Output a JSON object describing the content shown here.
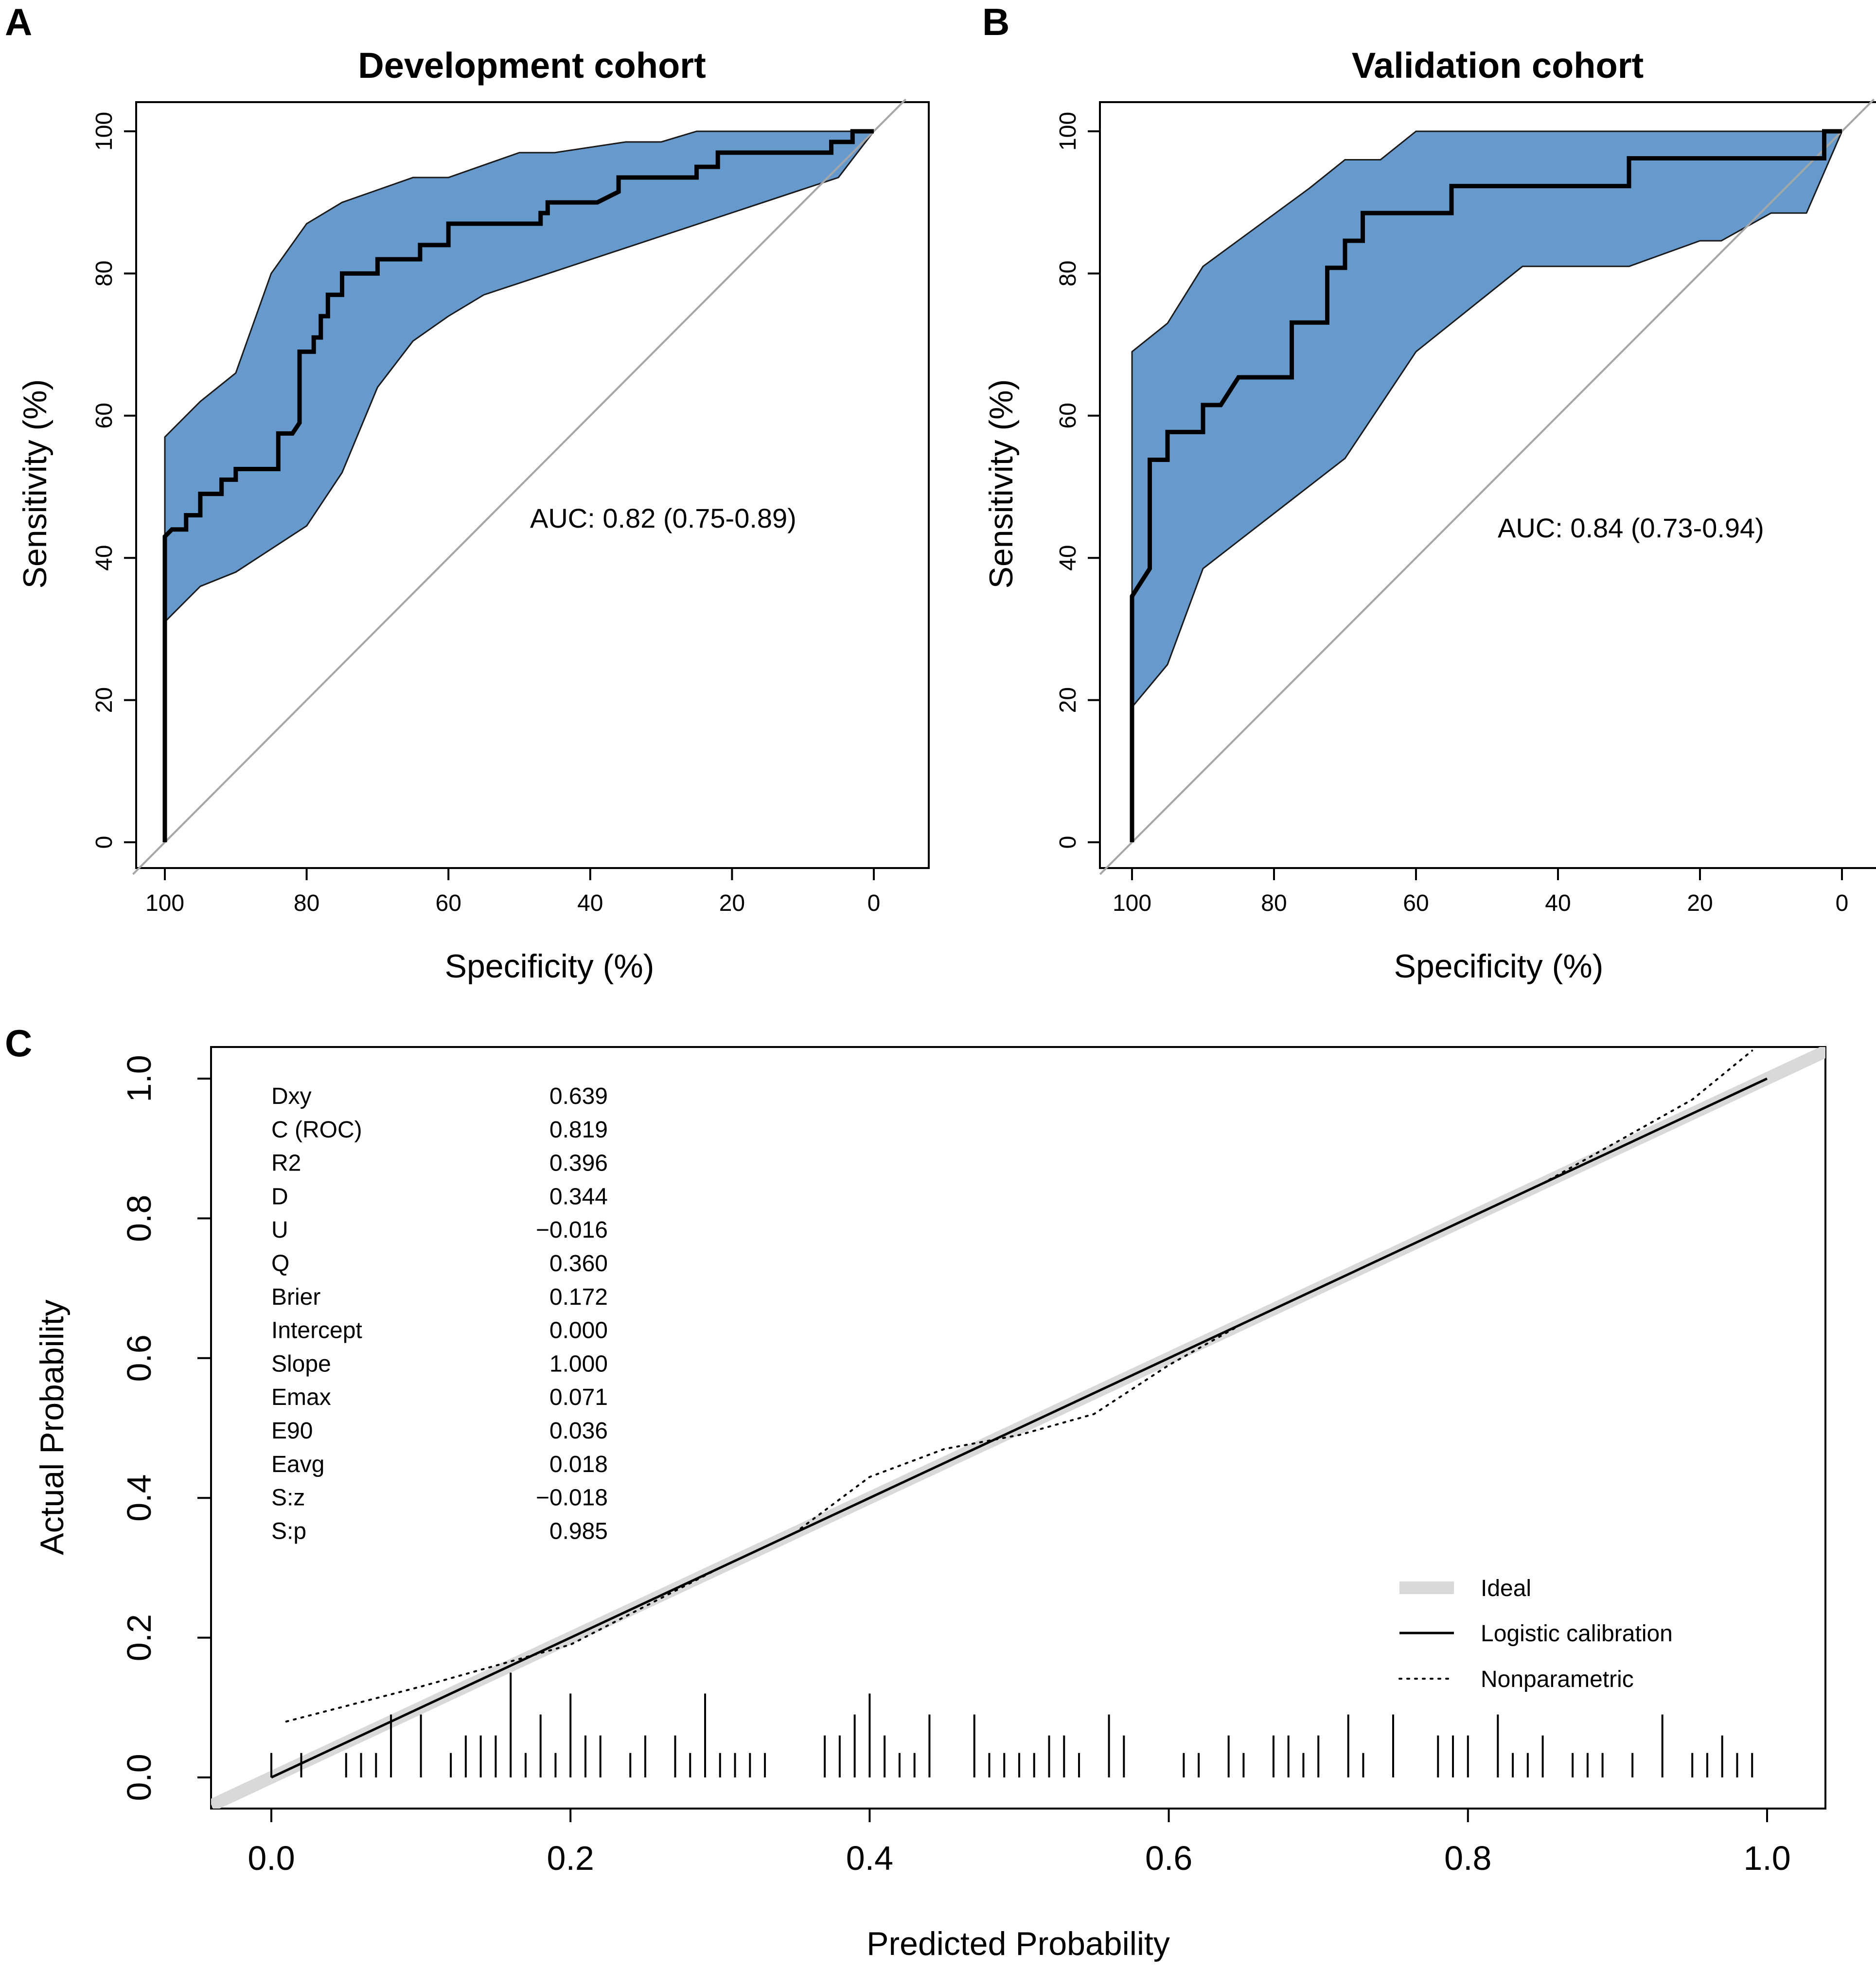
{
  "panels": {
    "a": {
      "letter": "A"
    },
    "b": {
      "letter": "B"
    },
    "c": {
      "letter": "C"
    }
  },
  "colors": {
    "band_fill": "#6699cc",
    "band_stroke": "#1a1a1a",
    "curve": "#000000",
    "diagonal": "#a6a6a6",
    "ideal": "#d9d9d9"
  },
  "chart_data": [
    {
      "type": "line",
      "title": "Development cohort",
      "xlabel": "Specificity (%)",
      "ylabel": "Sensitivity (%)",
      "xlim": [
        100,
        0
      ],
      "ylim": [
        0,
        100
      ],
      "xticks": [
        "100",
        "80",
        "60",
        "40",
        "20",
        "0"
      ],
      "yticks": [
        "0",
        "20",
        "40",
        "60",
        "80",
        "100"
      ],
      "auc_label": "AUC: 0.82 (0.75-0.89)",
      "roc_curve": [
        [
          100,
          0
        ],
        [
          100,
          43
        ],
        [
          99,
          44
        ],
        [
          97,
          44
        ],
        [
          97,
          46
        ],
        [
          95,
          46
        ],
        [
          95,
          49
        ],
        [
          92,
          49
        ],
        [
          92,
          51
        ],
        [
          90,
          51
        ],
        [
          90,
          52.5
        ],
        [
          84,
          52.5
        ],
        [
          84,
          57.5
        ],
        [
          82,
          57.5
        ],
        [
          81,
          59
        ],
        [
          81,
          69
        ],
        [
          79,
          69
        ],
        [
          79,
          71
        ],
        [
          78,
          71
        ],
        [
          78,
          74
        ],
        [
          77,
          74
        ],
        [
          77,
          77
        ],
        [
          75,
          77
        ],
        [
          75,
          80
        ],
        [
          72,
          80
        ],
        [
          70,
          80
        ],
        [
          70,
          82
        ],
        [
          64,
          82
        ],
        [
          64,
          84
        ],
        [
          60,
          84
        ],
        [
          60,
          87
        ],
        [
          47,
          87
        ],
        [
          47,
          88.5
        ],
        [
          46,
          88.5
        ],
        [
          46,
          90
        ],
        [
          39,
          90
        ],
        [
          36,
          91.5
        ],
        [
          36,
          93.5
        ],
        [
          25,
          93.5
        ],
        [
          25,
          95
        ],
        [
          22,
          95
        ],
        [
          22,
          97
        ],
        [
          6,
          97
        ],
        [
          6,
          98.5
        ],
        [
          3,
          98.5
        ],
        [
          3,
          100
        ],
        [
          0,
          100
        ]
      ],
      "ci_upper": [
        [
          100,
          57
        ],
        [
          95,
          62
        ],
        [
          90,
          66
        ],
        [
          85,
          80
        ],
        [
          80,
          87
        ],
        [
          75,
          90
        ],
        [
          65,
          93.5
        ],
        [
          60,
          93.5
        ],
        [
          50,
          97
        ],
        [
          45,
          97
        ],
        [
          35,
          98.5
        ],
        [
          30,
          98.5
        ],
        [
          25,
          100
        ],
        [
          0,
          100
        ]
      ],
      "ci_lower": [
        [
          100,
          31
        ],
        [
          95,
          36
        ],
        [
          90,
          38
        ],
        [
          80,
          44.5
        ],
        [
          75,
          52
        ],
        [
          70,
          64
        ],
        [
          65,
          70.5
        ],
        [
          60,
          74
        ],
        [
          55,
          77
        ],
        [
          5,
          93.5
        ],
        [
          0,
          100
        ]
      ]
    },
    {
      "type": "line",
      "title": "Validation cohort",
      "xlabel": "Specificity (%)",
      "ylabel": "Sensitivity (%)",
      "xlim": [
        100,
        0
      ],
      "ylim": [
        0,
        100
      ],
      "xticks": [
        "100",
        "80",
        "60",
        "40",
        "20",
        "0"
      ],
      "yticks": [
        "0",
        "20",
        "40",
        "60",
        "80",
        "100"
      ],
      "auc_label": "AUC: 0.84 (0.73-0.94)",
      "roc_curve": [
        [
          100,
          0
        ],
        [
          100,
          34.6
        ],
        [
          97.5,
          38.5
        ],
        [
          97.5,
          53.8
        ],
        [
          95,
          53.8
        ],
        [
          95,
          57.7
        ],
        [
          90,
          57.7
        ],
        [
          90,
          61.5
        ],
        [
          87.5,
          61.5
        ],
        [
          85,
          65.4
        ],
        [
          77.5,
          65.4
        ],
        [
          77.5,
          73.1
        ],
        [
          72.5,
          73.1
        ],
        [
          72.5,
          80.8
        ],
        [
          70,
          80.8
        ],
        [
          70,
          84.6
        ],
        [
          67.5,
          84.6
        ],
        [
          67.5,
          88.5
        ],
        [
          55,
          88.5
        ],
        [
          55,
          92.3
        ],
        [
          30,
          92.3
        ],
        [
          30,
          96.2
        ],
        [
          2.5,
          96.2
        ],
        [
          2.5,
          100
        ],
        [
          0,
          100
        ]
      ],
      "ci_upper": [
        [
          100,
          69
        ],
        [
          95,
          73
        ],
        [
          90,
          81
        ],
        [
          75,
          92
        ],
        [
          70,
          96
        ],
        [
          65,
          96
        ],
        [
          60,
          100
        ],
        [
          0,
          100
        ]
      ],
      "ci_lower": [
        [
          100,
          19
        ],
        [
          95,
          25
        ],
        [
          90,
          38.5
        ],
        [
          70,
          54
        ],
        [
          60,
          69
        ],
        [
          45,
          81
        ],
        [
          30,
          81
        ],
        [
          20,
          84.6
        ],
        [
          17,
          84.6
        ],
        [
          10,
          88.5
        ],
        [
          5,
          88.5
        ],
        [
          0,
          100
        ]
      ]
    },
    {
      "type": "line",
      "title": "",
      "xlabel": "Predicted Probability",
      "ylabel": "Actual Probability",
      "xlim": [
        -0.04,
        1.04
      ],
      "ylim": [
        -0.04,
        1.04
      ],
      "xticks": [
        "0.0",
        "0.2",
        "0.4",
        "0.6",
        "0.8",
        "1.0"
      ],
      "yticks": [
        "0.0",
        "0.2",
        "0.4",
        "0.6",
        "0.8",
        "1.0"
      ],
      "ideal": [
        [
          -0.04,
          -0.04
        ],
        [
          1.04,
          1.04
        ]
      ],
      "logistic": [
        [
          0,
          0
        ],
        [
          1,
          1
        ]
      ],
      "nonparametric": [
        [
          0.01,
          0.08
        ],
        [
          0.1,
          0.13
        ],
        [
          0.2,
          0.19
        ],
        [
          0.3,
          0.3
        ],
        [
          0.35,
          0.35
        ],
        [
          0.4,
          0.43
        ],
        [
          0.45,
          0.47
        ],
        [
          0.5,
          0.49
        ],
        [
          0.55,
          0.52
        ],
        [
          0.6,
          0.59
        ],
        [
          0.65,
          0.65
        ],
        [
          0.7,
          0.7
        ],
        [
          0.8,
          0.8
        ],
        [
          0.85,
          0.85
        ],
        [
          0.9,
          0.91
        ],
        [
          0.95,
          0.97
        ],
        [
          0.99,
          1.04
        ]
      ],
      "rug_x": [
        0.0,
        0.02,
        0.05,
        0.06,
        0.07,
        0.08,
        0.1,
        0.12,
        0.13,
        0.14,
        0.15,
        0.16,
        0.17,
        0.18,
        0.19,
        0.2,
        0.21,
        0.22,
        0.24,
        0.25,
        0.27,
        0.28,
        0.29,
        0.3,
        0.31,
        0.32,
        0.33,
        0.37,
        0.38,
        0.39,
        0.4,
        0.41,
        0.42,
        0.43,
        0.44,
        0.47,
        0.48,
        0.49,
        0.5,
        0.51,
        0.52,
        0.53,
        0.54,
        0.56,
        0.57,
        0.61,
        0.62,
        0.64,
        0.65,
        0.67,
        0.68,
        0.69,
        0.7,
        0.72,
        0.73,
        0.75,
        0.78,
        0.79,
        0.8,
        0.82,
        0.83,
        0.84,
        0.85,
        0.87,
        0.88,
        0.89,
        0.91,
        0.93,
        0.95,
        0.96,
        0.97,
        0.98,
        0.99
      ],
      "rug_h": [
        0.035,
        0.035,
        0.035,
        0.035,
        0.035,
        0.09,
        0.09,
        0.035,
        0.06,
        0.06,
        0.06,
        0.15,
        0.035,
        0.09,
        0.035,
        0.12,
        0.06,
        0.06,
        0.035,
        0.06,
        0.06,
        0.035,
        0.12,
        0.035,
        0.035,
        0.035,
        0.035,
        0.06,
        0.06,
        0.09,
        0.12,
        0.06,
        0.035,
        0.035,
        0.09,
        0.09,
        0.035,
        0.035,
        0.035,
        0.035,
        0.06,
        0.06,
        0.035,
        0.09,
        0.06,
        0.035,
        0.035,
        0.06,
        0.035,
        0.06,
        0.06,
        0.035,
        0.06,
        0.09,
        0.035,
        0.09,
        0.06,
        0.06,
        0.06,
        0.09,
        0.035,
        0.035,
        0.06,
        0.035,
        0.035,
        0.035,
        0.035,
        0.09,
        0.035,
        0.035,
        0.06,
        0.035,
        0.035
      ],
      "stats": [
        {
          "label": "Dxy",
          "value": "0.639"
        },
        {
          "label": "C (ROC)",
          "value": "0.819"
        },
        {
          "label": "R2",
          "value": "0.396"
        },
        {
          "label": "D",
          "value": "0.344"
        },
        {
          "label": "U",
          "value": "−0.016"
        },
        {
          "label": "Q",
          "value": "0.360"
        },
        {
          "label": "Brier",
          "value": "0.172"
        },
        {
          "label": "Intercept",
          "value": "0.000"
        },
        {
          "label": "Slope",
          "value": "1.000"
        },
        {
          "label": "Emax",
          "value": "0.071"
        },
        {
          "label": "E90",
          "value": "0.036"
        },
        {
          "label": "Eavg",
          "value": "0.018"
        },
        {
          "label": "S:z",
          "value": "−0.018"
        },
        {
          "label": "S:p",
          "value": "0.985"
        }
      ],
      "legend": [
        {
          "label": "Ideal",
          "style": "ideal"
        },
        {
          "label": "Logistic calibration",
          "style": "solid"
        },
        {
          "label": "Nonparametric",
          "style": "dotted"
        }
      ],
      "legend_position": "bottom-right"
    }
  ]
}
